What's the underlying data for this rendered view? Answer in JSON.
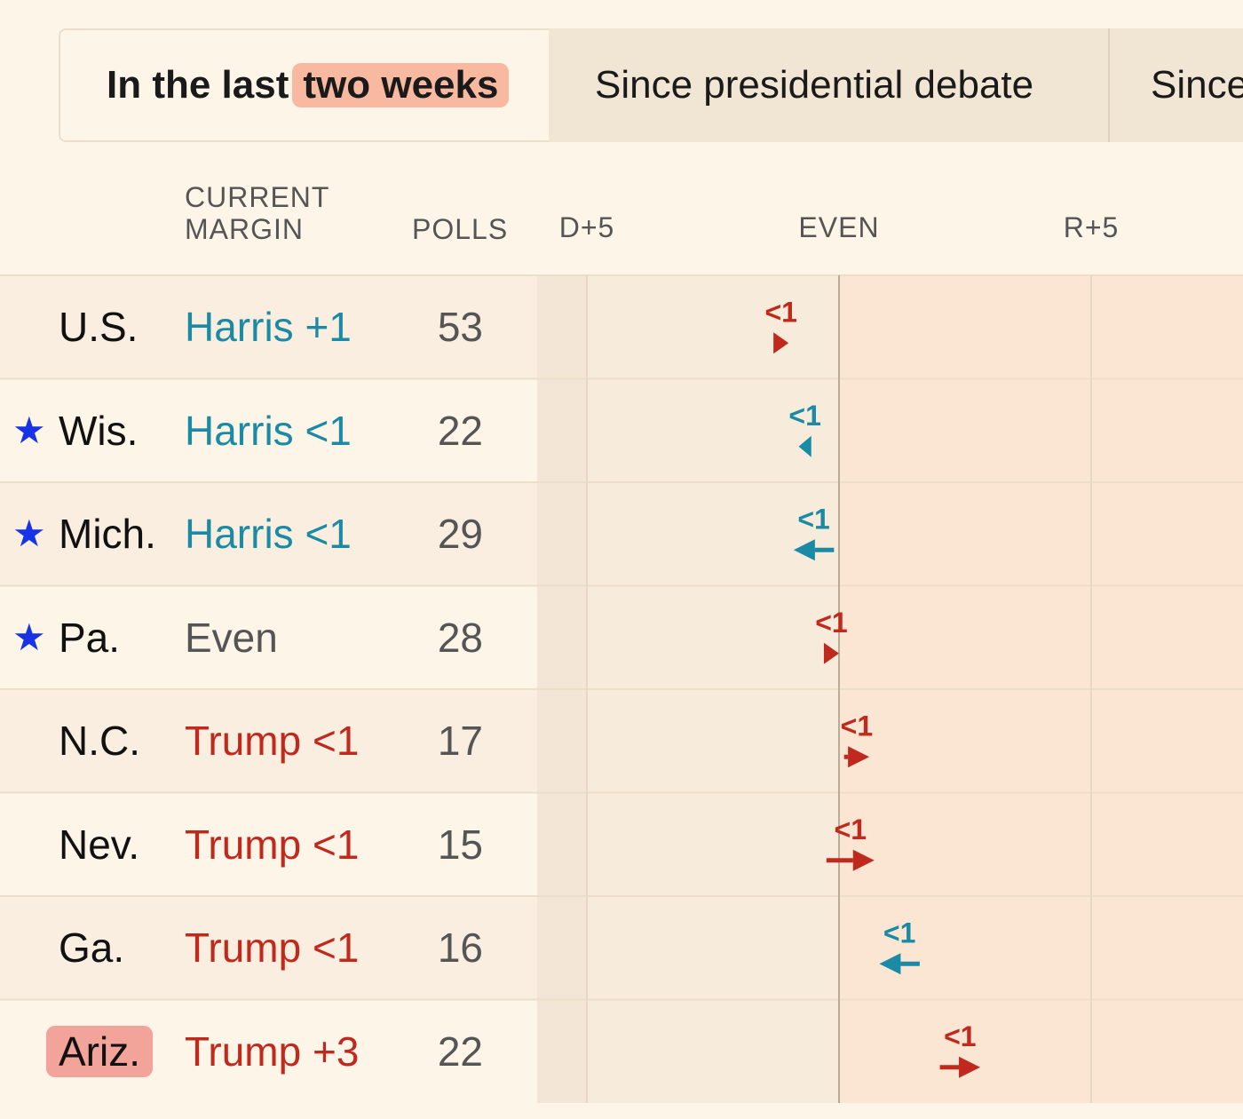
{
  "tabs": [
    {
      "prefix": "In the last",
      "highlight": "two weeks"
    },
    {
      "label": "Since presidential debate"
    },
    {
      "label": "Since"
    }
  ],
  "headers": {
    "margin_line1": "CURRENT",
    "margin_line2": "MARGIN",
    "polls": "POLLS"
  },
  "colors": {
    "harris": "#1a8aa5",
    "trump": "#c02a1e",
    "even": "#555555",
    "star": "#1833e5"
  },
  "chart_data": {
    "type": "arrow-dot",
    "x_ticks": [
      {
        "label": "D+5",
        "value": -5
      },
      {
        "label": "EVEN",
        "value": 0
      },
      {
        "label": "R+5",
        "value": 5
      }
    ],
    "xlim": [
      -6,
      8
    ],
    "rows": [
      {
        "state": "U.S.",
        "star": false,
        "highlight": false,
        "margin_label": "Harris +1",
        "party": "harris",
        "polls": "53",
        "from": -1.3,
        "to": -1.0,
        "change_label": "<1",
        "change_party": "trump"
      },
      {
        "state": "Wis.",
        "star": true,
        "highlight": false,
        "margin_label": "Harris <1",
        "party": "harris",
        "polls": "22",
        "from": -0.55,
        "to": -0.8,
        "change_label": "<1",
        "change_party": "harris"
      },
      {
        "state": "Mich.",
        "star": true,
        "highlight": false,
        "margin_label": "Harris <1",
        "party": "harris",
        "polls": "29",
        "from": -0.1,
        "to": -0.9,
        "change_label": "<1",
        "change_party": "harris"
      },
      {
        "state": "Pa.",
        "star": true,
        "highlight": false,
        "margin_label": "Even",
        "party": "even",
        "polls": "28",
        "from": -0.3,
        "to": 0.0,
        "change_label": "<1",
        "change_party": "trump"
      },
      {
        "state": "N.C.",
        "star": false,
        "highlight": false,
        "margin_label": "Trump <1",
        "party": "trump",
        "polls": "17",
        "from": 0.1,
        "to": 0.6,
        "change_label": "<1",
        "change_party": "trump"
      },
      {
        "state": "Nev.",
        "star": false,
        "highlight": false,
        "margin_label": "Trump <1",
        "party": "trump",
        "polls": "15",
        "from": -0.25,
        "to": 0.7,
        "change_label": "<1",
        "change_party": "trump"
      },
      {
        "state": "Ga.",
        "star": false,
        "highlight": false,
        "margin_label": "Trump <1",
        "party": "trump",
        "polls": "16",
        "from": 1.6,
        "to": 0.8,
        "change_label": "<1",
        "change_party": "harris"
      },
      {
        "state": "Ariz.",
        "star": false,
        "highlight": true,
        "margin_label": "Trump +3",
        "party": "trump",
        "polls": "22",
        "from": 2.0,
        "to": 2.8,
        "change_label": "<1",
        "change_party": "trump"
      }
    ]
  }
}
